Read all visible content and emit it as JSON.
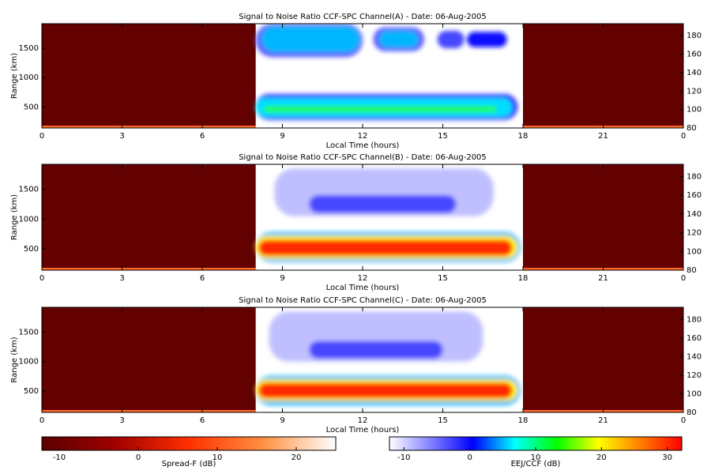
{
  "chart_data": [
    {
      "type": "rti",
      "title": "Signal to Noise Ratio CCF-SPC Channel(A) - Date: 06-Aug-2005",
      "xlabel": "Local Time (hours)",
      "ylabel": "Range (km)",
      "xlim": [
        0,
        24
      ],
      "xticks": [
        0,
        3,
        6,
        9,
        12,
        15,
        18,
        21,
        {
          "value": 24,
          "label": "0"
        }
      ],
      "ylim": [
        140,
        1920
      ],
      "yticks": [
        500,
        1000,
        1500
      ],
      "y2lim": [
        80,
        193
      ],
      "y2ticks": [
        80,
        100,
        120,
        140,
        160,
        180
      ],
      "spread_f": [
        {
          "t": [
            0,
            8
          ],
          "range": [
            140,
            1920
          ],
          "snr": -11
        },
        {
          "t": [
            18,
            24
          ],
          "range": [
            140,
            1920
          ],
          "snr": -11
        },
        {
          "t": [
            0,
            8
          ],
          "range": [
            140,
            180
          ],
          "snr": 12
        },
        {
          "t": [
            18,
            24
          ],
          "range": [
            140,
            180
          ],
          "snr": 12
        }
      ],
      "echoes": [
        {
          "t": [
            8,
            12
          ],
          "range": [
            1350,
            1920
          ],
          "snr": -4
        },
        {
          "t": [
            8.2,
            11.9
          ],
          "range": [
            1430,
            1880
          ],
          "snr": 5
        },
        {
          "t": [
            12.4,
            14.3
          ],
          "range": [
            1450,
            1860
          ],
          "snr": -4
        },
        {
          "t": [
            12.6,
            14.1
          ],
          "range": [
            1510,
            1800
          ],
          "snr": 5
        },
        {
          "t": [
            14.8,
            15.8
          ],
          "range": [
            1500,
            1800
          ],
          "snr": -3
        },
        {
          "t": [
            15.9,
            17.4
          ],
          "range": [
            1520,
            1780
          ],
          "snr": 0
        },
        {
          "t": [
            8,
            17.8
          ],
          "range": [
            280,
            720
          ],
          "snr": -2
        },
        {
          "t": [
            8,
            17.6
          ],
          "range": [
            330,
            650
          ],
          "snr": 6
        },
        {
          "t": [
            8.3,
            17
          ],
          "range": [
            410,
            510
          ],
          "snr": 14
        }
      ]
    },
    {
      "type": "rti",
      "title": "Signal to Noise Ratio CCF-SPC Channel(B) - Date: 06-Aug-2005",
      "xlabel": "Local Time (hours)",
      "ylabel": "Range (km)",
      "xlim": [
        0,
        24
      ],
      "xticks": [
        0,
        3,
        6,
        9,
        12,
        15,
        18,
        21,
        {
          "value": 24,
          "label": "0"
        }
      ],
      "ylim": [
        140,
        1920
      ],
      "yticks": [
        500,
        1000,
        1500
      ],
      "y2lim": [
        80,
        193
      ],
      "y2ticks": [
        80,
        100,
        120,
        140,
        160,
        180
      ],
      "spread_f": [
        {
          "t": [
            0,
            8
          ],
          "range": [
            140,
            1920
          ],
          "snr": -11
        },
        {
          "t": [
            18,
            24
          ],
          "range": [
            140,
            1920
          ],
          "snr": -11
        },
        {
          "t": [
            0,
            8
          ],
          "range": [
            140,
            180
          ],
          "snr": 12
        },
        {
          "t": [
            18,
            24
          ],
          "range": [
            140,
            180
          ],
          "snr": 12
        }
      ],
      "echoes": [
        {
          "t": [
            8.7,
            16.9
          ],
          "range": [
            1050,
            1850
          ],
          "snr": -9
        },
        {
          "t": [
            10,
            15.5
          ],
          "range": [
            1100,
            1400
          ],
          "snr": -3
        },
        {
          "t": [
            8,
            17.9
          ],
          "range": [
            280,
            780
          ],
          "snr": 5
        },
        {
          "t": [
            8,
            17.8
          ],
          "range": [
            330,
            720
          ],
          "snr": 20
        },
        {
          "t": [
            8.1,
            17.6
          ],
          "range": [
            380,
            650
          ],
          "snr": 30
        }
      ]
    },
    {
      "type": "rti",
      "title": "Signal to Noise Ratio CCF-SPC Channel(C) - Date: 06-Aug-2005",
      "xlabel": "Local Time (hours)",
      "ylabel": "Range (km)",
      "xlim": [
        0,
        24
      ],
      "xticks": [
        0,
        3,
        6,
        9,
        12,
        15,
        18,
        21,
        {
          "value": 24,
          "label": "0"
        }
      ],
      "ylim": [
        140,
        1920
      ],
      "yticks": [
        500,
        1000,
        1500
      ],
      "y2lim": [
        80,
        193
      ],
      "y2ticks": [
        80,
        100,
        120,
        140,
        160,
        180
      ],
      "spread_f": [
        {
          "t": [
            0,
            8
          ],
          "range": [
            140,
            1920
          ],
          "snr": -11
        },
        {
          "t": [
            18,
            24
          ],
          "range": [
            140,
            1920
          ],
          "snr": -11
        },
        {
          "t": [
            0,
            8
          ],
          "range": [
            140,
            180
          ],
          "snr": 12
        },
        {
          "t": [
            18,
            24
          ],
          "range": [
            140,
            180
          ],
          "snr": 12
        }
      ],
      "echoes": [
        {
          "t": [
            8.5,
            16.5
          ],
          "range": [
            1000,
            1850
          ],
          "snr": -9
        },
        {
          "t": [
            10,
            15
          ],
          "range": [
            1050,
            1350
          ],
          "snr": -3
        },
        {
          "t": [
            8,
            17.9
          ],
          "range": [
            260,
            760
          ],
          "snr": 5
        },
        {
          "t": [
            8,
            17.8
          ],
          "range": [
            330,
            700
          ],
          "snr": 20
        },
        {
          "t": [
            8.1,
            17.6
          ],
          "range": [
            380,
            640
          ],
          "snr": 30
        }
      ]
    },
    {
      "type": "colorbar",
      "label": "Spread-F (dB)",
      "xlim": [
        -12.2,
        25
      ],
      "xticks": [
        -10,
        0,
        10,
        20
      ],
      "colors": [
        "#5a0000",
        "#a00000",
        "#ff3000",
        "#ff9040",
        "#ffffff"
      ]
    },
    {
      "type": "colorbar",
      "label": "EEJ/CCF (dB)",
      "xlim": [
        -12.2,
        32.2
      ],
      "xticks": [
        -10,
        0,
        10,
        20,
        30
      ],
      "colors": [
        "#ffffff",
        "#8080ff",
        "#0000ff",
        "#00ffff",
        "#00ff00",
        "#ffff00",
        "#ff8000",
        "#ff0000"
      ]
    }
  ]
}
